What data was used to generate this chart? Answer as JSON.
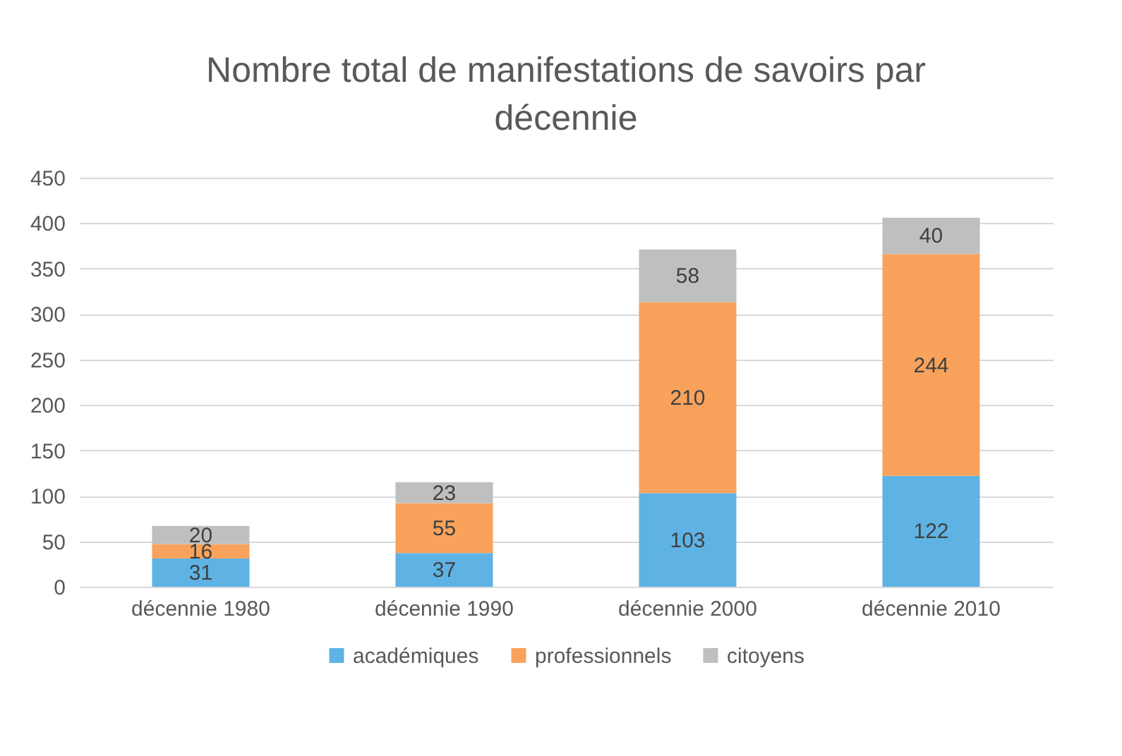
{
  "chart_data": {
    "type": "bar",
    "title": "Nombre total de manifestations de savoirs par décennie",
    "categories": [
      "décennie 1980",
      "décennie 1990",
      "décennie 2000",
      "décennie 2010"
    ],
    "series": [
      {
        "name": "académiques",
        "color": "#5eb3e4",
        "values": [
          31,
          37,
          103,
          122
        ]
      },
      {
        "name": "professionnels",
        "color": "#f8a25b",
        "values": [
          16,
          55,
          210,
          244
        ]
      },
      {
        "name": "citoyens",
        "color": "#bfbfbf",
        "values": [
          20,
          23,
          58,
          40
        ]
      }
    ],
    "stacked": true,
    "ylim": [
      0,
      450
    ],
    "yticks": [
      0,
      50,
      100,
      150,
      200,
      250,
      300,
      350,
      400,
      450
    ],
    "grid": "y",
    "legend": "bottom",
    "data_labels": true
  }
}
